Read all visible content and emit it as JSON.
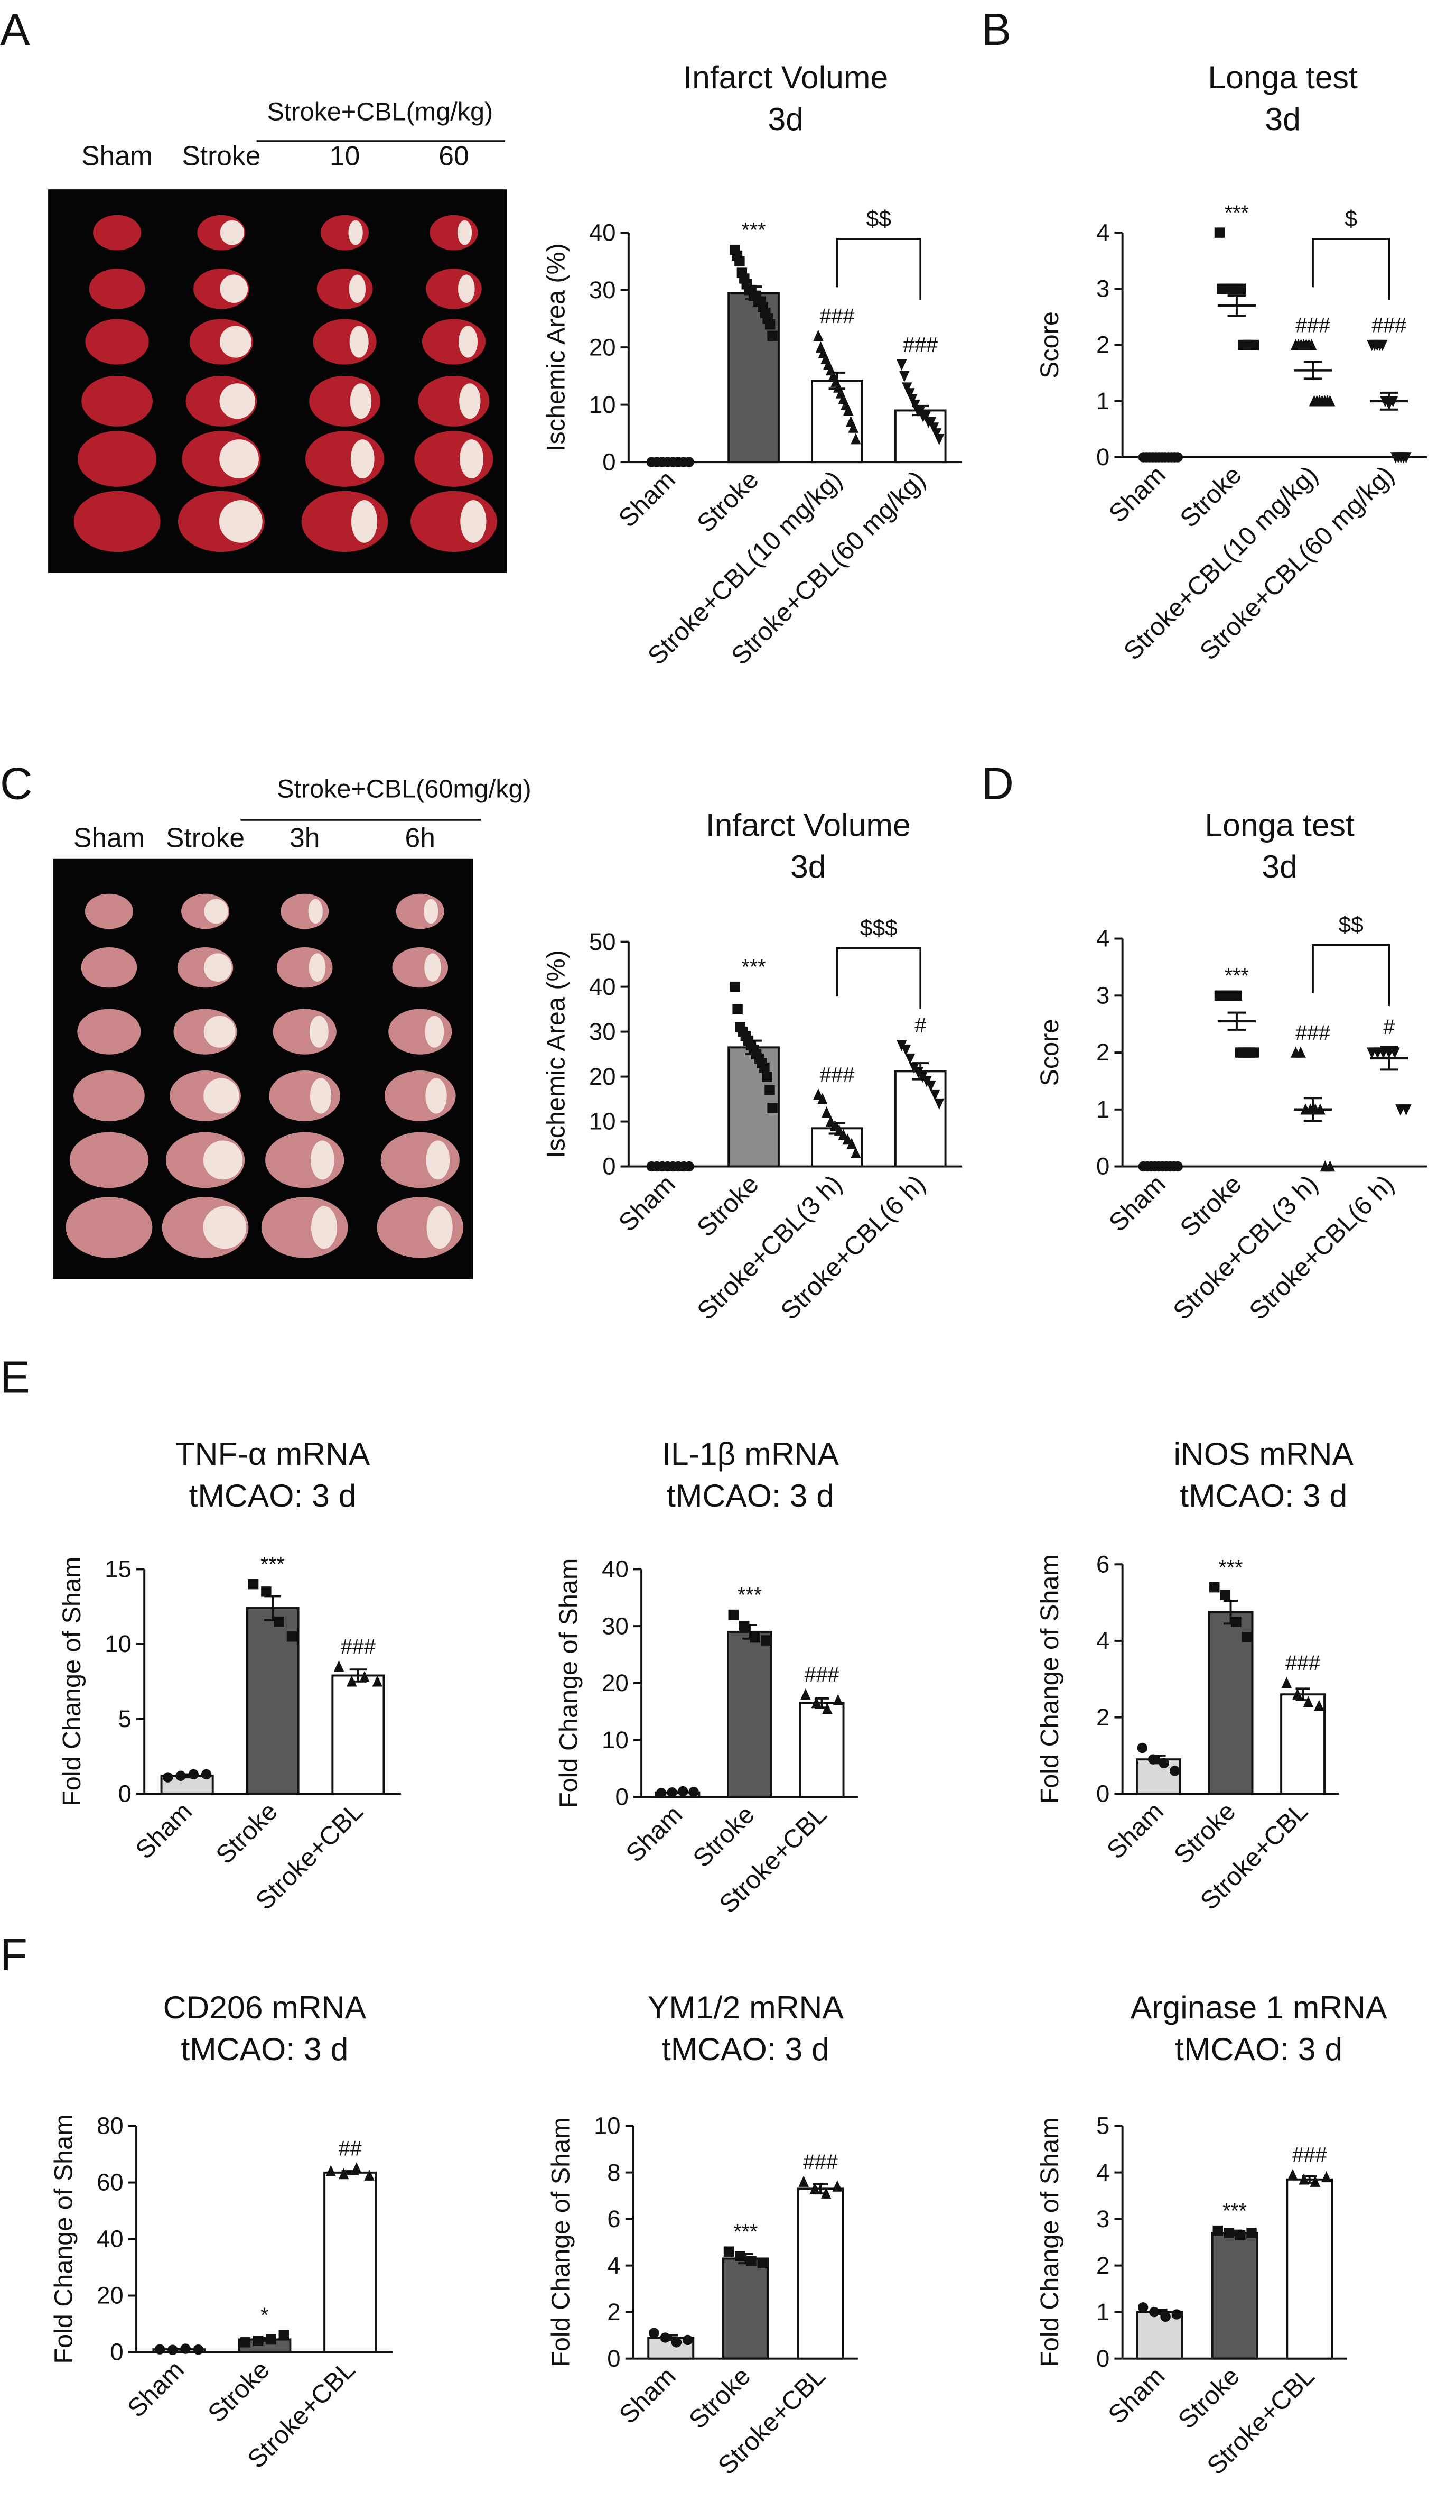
{
  "panels": [
    "A",
    "B",
    "C",
    "D",
    "E",
    "F"
  ],
  "images": [
    {
      "group": "Stroke+CBL(mg/kg)",
      "labels": [
        "Sham",
        "Stroke",
        "10",
        "60"
      ]
    },
    {
      "group": "Stroke+CBL(60mg/kg)",
      "labels": [
        "Sham",
        "Stroke",
        "3h",
        "6h"
      ]
    }
  ],
  "chart_data": [
    {
      "type": "bar",
      "title": "Infarct Volume",
      "subtitle": "3d",
      "ylabel": "Ischemic Area (%)",
      "categories": [
        "Sham",
        "Stroke",
        "Stroke+CBL(10 mg/kg)",
        "Stroke+CBL(60 mg/kg)"
      ],
      "values": [
        0,
        29.5,
        14.2,
        9.0
      ],
      "errors": [
        0.1,
        1.1,
        1.4,
        0.8
      ],
      "colors": [
        "#ffffff",
        "#595959",
        "#ffffff",
        "#ffffff"
      ],
      "markers": [
        "circle",
        "square",
        "triangle",
        "inverted-triangle"
      ],
      "points": [
        [
          0,
          0,
          0,
          0,
          0,
          0,
          0,
          0
        ],
        [
          37,
          36,
          35,
          33,
          32,
          31,
          30,
          30,
          29,
          29,
          28,
          28,
          27,
          26,
          25,
          24,
          22
        ],
        [
          22,
          20,
          19,
          18,
          17,
          16,
          15,
          14,
          13,
          12,
          11,
          10,
          9,
          7,
          6,
          4
        ],
        [
          17,
          15,
          13,
          12,
          11,
          10,
          9,
          9,
          8,
          8,
          7,
          7,
          6,
          5,
          4
        ]
      ],
      "annotations": [
        null,
        "***",
        "###",
        "###"
      ],
      "bracket": {
        "from": 2,
        "to": 3,
        "label": "$$"
      },
      "ylim": [
        0,
        40
      ],
      "yticks": [
        0,
        10,
        20,
        30,
        40
      ]
    },
    {
      "type": "dot",
      "title": "Longa test",
      "subtitle": "3d",
      "ylabel": "Score",
      "categories": [
        "Sham",
        "Stroke",
        "Stroke+CBL(10 mg/kg)",
        "Stroke+CBL(60 mg/kg)"
      ],
      "values": [
        0,
        2.7,
        1.55,
        1.0
      ],
      "errors": [
        0.02,
        0.18,
        0.15,
        0.15
      ],
      "markers": [
        "circle",
        "square",
        "triangle",
        "inverted-triangle"
      ],
      "points": [
        [
          0,
          0,
          0,
          0,
          0,
          0,
          0,
          0,
          0,
          0,
          0,
          0
        ],
        [
          4,
          3,
          3,
          3,
          3,
          3,
          3,
          3,
          3,
          2,
          2,
          2,
          2,
          2
        ],
        [
          2,
          2,
          2,
          2,
          2,
          2,
          2,
          1,
          1,
          1,
          1,
          1,
          1,
          1
        ],
        [
          2,
          2,
          2,
          2,
          2,
          1,
          1,
          1,
          1,
          0,
          0,
          0,
          0,
          0
        ]
      ],
      "annotations": [
        null,
        "***",
        "###",
        "###"
      ],
      "bracket": {
        "from": 2,
        "to": 3,
        "label": "$"
      },
      "ylim": [
        0,
        4
      ],
      "yticks": [
        0,
        1,
        2,
        3,
        4
      ]
    },
    {
      "type": "bar",
      "title": "Infarct Volume",
      "subtitle": "3d",
      "ylabel": "Ischemic Area (%)",
      "categories": [
        "Sham",
        "Stroke",
        "Stroke+CBL(3 h)",
        "Stroke+CBL(6 h)"
      ],
      "values": [
        0,
        26.5,
        8.5,
        21.2
      ],
      "errors": [
        0.1,
        1.5,
        1.2,
        1.8
      ],
      "colors": [
        "#ffffff",
        "#8c8c8c",
        "#ffffff",
        "#ffffff"
      ],
      "markers": [
        "circle",
        "square",
        "triangle",
        "inverted-triangle"
      ],
      "points": [
        [
          0,
          0,
          0,
          0,
          0,
          0,
          0,
          0
        ],
        [
          40,
          35,
          31,
          30,
          29,
          28,
          27,
          26,
          25,
          24,
          23,
          22,
          20,
          17,
          13
        ],
        [
          16,
          15,
          12,
          10,
          9,
          8,
          7,
          6,
          5,
          3
        ],
        [
          27,
          26,
          24,
          22,
          21,
          20,
          19,
          18,
          16,
          14
        ]
      ],
      "annotations": [
        null,
        "***",
        "###",
        "#"
      ],
      "bracket": {
        "from": 2,
        "to": 3,
        "label": "$$$"
      },
      "ylim": [
        0,
        50
      ],
      "yticks": [
        0,
        10,
        20,
        30,
        40,
        50
      ]
    },
    {
      "type": "dot",
      "title": "Longa test",
      "subtitle": "3d",
      "ylabel": "Score",
      "categories": [
        "Sham",
        "Stroke",
        "Stroke+CBL(3 h)",
        "Stroke+CBL(6 h)"
      ],
      "values": [
        0,
        2.55,
        1.0,
        1.9
      ],
      "errors": [
        0.02,
        0.15,
        0.2,
        0.2
      ],
      "markers": [
        "circle",
        "square",
        "triangle",
        "inverted-triangle"
      ],
      "points": [
        [
          0,
          0,
          0,
          0,
          0,
          0,
          0,
          0,
          0,
          0
        ],
        [
          3,
          3,
          3,
          3,
          3,
          3,
          2,
          2,
          2,
          2,
          2
        ],
        [
          2,
          2,
          1,
          1,
          1,
          1,
          0,
          0
        ],
        [
          2,
          2,
          2,
          2,
          2,
          1,
          1
        ]
      ],
      "annotations": [
        null,
        "***",
        "###",
        "#"
      ],
      "bracket": {
        "from": 2,
        "to": 3,
        "label": "$$"
      },
      "ylim": [
        0,
        4
      ],
      "yticks": [
        0,
        1,
        2,
        3,
        4
      ]
    },
    {
      "type": "bar",
      "title": "TNF-α mRNA",
      "subtitle": "tMCAO: 3 d",
      "ylabel": "Fold Change of Sham",
      "categories": [
        "Sham",
        "Stroke",
        "Stroke+CBL"
      ],
      "values": [
        1.2,
        12.4,
        7.9
      ],
      "errors": [
        0.1,
        0.8,
        0.4
      ],
      "colors": [
        "#d9d9d9",
        "#595959",
        "#ffffff"
      ],
      "markers": [
        "circle",
        "square",
        "triangle"
      ],
      "points": [
        [
          1.1,
          1.2,
          1.3,
          1.3
        ],
        [
          14,
          13.5,
          11.5,
          10.5
        ],
        [
          8.5,
          7.5,
          7.8,
          7.5
        ]
      ],
      "annotations": [
        null,
        "***",
        "###"
      ],
      "ylim": [
        0,
        15
      ],
      "yticks": [
        0,
        5,
        10,
        15
      ]
    },
    {
      "type": "bar",
      "title": "IL-1β mRNA",
      "subtitle": "tMCAO: 3 d",
      "ylabel": "Fold Change of Sham",
      "categories": [
        "Sham",
        "Stroke",
        "Stroke+CBL"
      ],
      "values": [
        0.8,
        29,
        16.5
      ],
      "errors": [
        0.1,
        1.2,
        0.8
      ],
      "colors": [
        "#d9d9d9",
        "#595959",
        "#ffffff"
      ],
      "markers": [
        "circle",
        "square",
        "triangle"
      ],
      "points": [
        [
          0.7,
          0.8,
          1,
          0.9
        ],
        [
          32,
          30,
          28,
          27.5
        ],
        [
          18,
          16.5,
          15.5,
          17
        ]
      ],
      "annotations": [
        null,
        "***",
        "###"
      ],
      "ylim": [
        0,
        40
      ],
      "yticks": [
        0,
        10,
        20,
        30,
        40
      ]
    },
    {
      "type": "bar",
      "title": "iNOS mRNA",
      "subtitle": "tMCAO: 3 d",
      "ylabel": "Fold Change of Sham",
      "categories": [
        "Sham",
        "Stroke",
        "Stroke+CBL"
      ],
      "values": [
        0.9,
        4.75,
        2.6
      ],
      "errors": [
        0.1,
        0.3,
        0.15
      ],
      "colors": [
        "#d9d9d9",
        "#595959",
        "#ffffff"
      ],
      "markers": [
        "circle",
        "square",
        "triangle"
      ],
      "points": [
        [
          1.2,
          0.9,
          0.8,
          0.6
        ],
        [
          5.4,
          5.2,
          4.5,
          4.1
        ],
        [
          2.9,
          2.6,
          2.4,
          2.3
        ]
      ],
      "annotations": [
        null,
        "***",
        "###"
      ],
      "ylim": [
        0,
        6
      ],
      "yticks": [
        0,
        2,
        4,
        6
      ]
    },
    {
      "type": "bar",
      "title": "CD206 mRNA",
      "subtitle": "tMCAO: 3 d",
      "ylabel": "Fold Change of Sham",
      "categories": [
        "Sham",
        "Stroke",
        "Stroke+CBL"
      ],
      "values": [
        1,
        4.5,
        63.5
      ],
      "errors": [
        0.1,
        0.5,
        0.5
      ],
      "colors": [
        "#d9d9d9",
        "#595959",
        "#ffffff"
      ],
      "markers": [
        "circle",
        "square",
        "triangle"
      ],
      "points": [
        [
          1,
          0.8,
          1.2,
          0.9
        ],
        [
          3.5,
          4,
          4.5,
          6
        ],
        [
          64,
          63,
          65,
          62.5
        ]
      ],
      "annotations": [
        null,
        "*",
        "##"
      ],
      "ylim": [
        0,
        80
      ],
      "yticks": [
        0,
        20,
        40,
        60,
        80
      ]
    },
    {
      "type": "bar",
      "title": "YM1/2 mRNA",
      "subtitle": "tMCAO: 3 d",
      "ylabel": "Fold Change of Sham",
      "categories": [
        "Sham",
        "Stroke",
        "Stroke+CBL"
      ],
      "values": [
        0.9,
        4.3,
        7.3
      ],
      "errors": [
        0.1,
        0.2,
        0.2
      ],
      "colors": [
        "#d9d9d9",
        "#595959",
        "#ffffff"
      ],
      "markers": [
        "circle",
        "square",
        "triangle"
      ],
      "points": [
        [
          1.1,
          0.9,
          0.7,
          0.8
        ],
        [
          4.6,
          4.4,
          4.2,
          4.1
        ],
        [
          7.6,
          7.3,
          7.1,
          7.4
        ]
      ],
      "annotations": [
        null,
        "***",
        "###"
      ],
      "ylim": [
        0,
        10
      ],
      "yticks": [
        0,
        2,
        4,
        6,
        8,
        10
      ]
    },
    {
      "type": "bar",
      "title": "Arginase 1 mRNA",
      "subtitle": "tMCAO: 3 d",
      "ylabel": "Fold Change of Sham",
      "categories": [
        "Sham",
        "Stroke",
        "Stroke+CBL"
      ],
      "values": [
        1.0,
        2.7,
        3.85
      ],
      "errors": [
        0.05,
        0.05,
        0.07
      ],
      "colors": [
        "#d9d9d9",
        "#595959",
        "#ffffff"
      ],
      "markers": [
        "circle",
        "square",
        "triangle"
      ],
      "points": [
        [
          1.1,
          1.0,
          0.9,
          0.95
        ],
        [
          2.75,
          2.7,
          2.65,
          2.7
        ],
        [
          3.95,
          3.85,
          3.8,
          3.9
        ]
      ],
      "annotations": [
        null,
        "***",
        "###"
      ],
      "ylim": [
        0,
        5
      ],
      "yticks": [
        0,
        1,
        2,
        3,
        4,
        5
      ]
    }
  ]
}
